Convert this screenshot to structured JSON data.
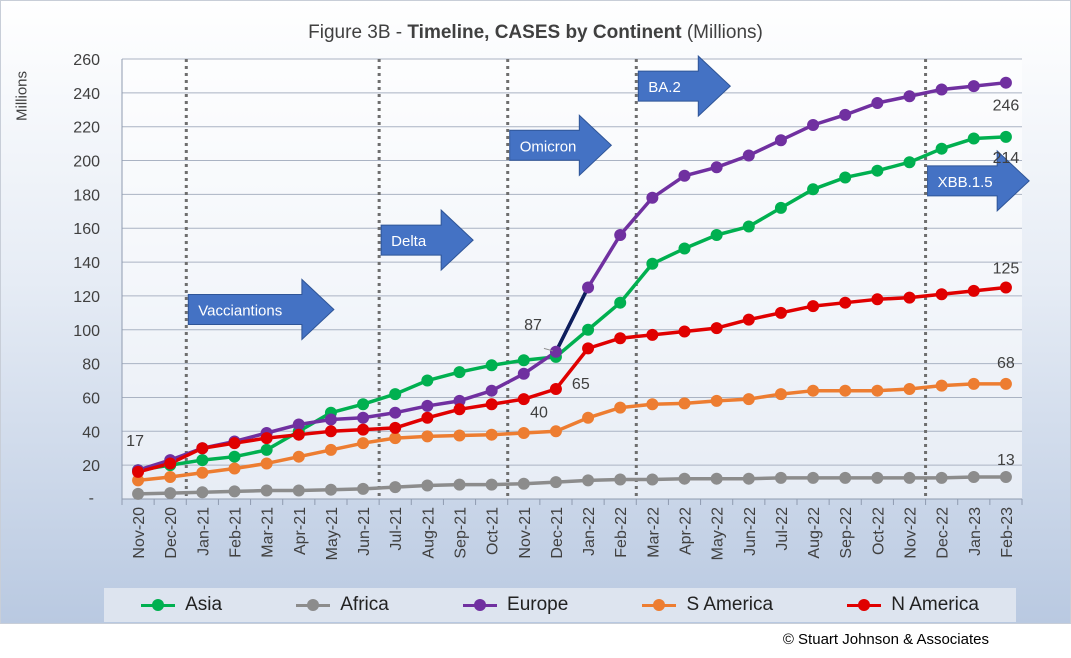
{
  "title_prefix": "Figure 3B - ",
  "title_bold": "Timeline, CASES by Continent",
  "title_suffix": " (Millions)",
  "copyright": "© Stuart Johnson & Associates",
  "chart_data": {
    "type": "line",
    "title": "Figure 3B - Timeline, CASES by Continent (Millions)",
    "ylabel": "Millions",
    "ylim": [
      0,
      260
    ],
    "yticks": [
      260,
      240,
      220,
      200,
      180,
      160,
      140,
      120,
      100,
      80,
      60,
      40,
      20
    ],
    "grid": true,
    "legend_position": "bottom",
    "categories": [
      "Nov-20",
      "Dec-20",
      "Jan-21",
      "Feb-21",
      "Mar-21",
      "Apr-21",
      "May-21",
      "Jun-21",
      "Jul-21",
      "Aug-21",
      "Sep-21",
      "Oct-21",
      "Nov-21",
      "Dec-21",
      "Jan-22",
      "Feb-22",
      "Mar-22",
      "Apr-22",
      "May-22",
      "Jun-22",
      "Jul-22",
      "Aug-22",
      "Sep-22",
      "Oct-22",
      "Nov-22",
      "Dec-22",
      "Jan-23",
      "Feb-23"
    ],
    "series": [
      {
        "name": "Asia",
        "color": "#00b050",
        "values": [
          17,
          20,
          23,
          25,
          29,
          40,
          51,
          56,
          62,
          70,
          75,
          79,
          82,
          84,
          100,
          116,
          139,
          148,
          156,
          161,
          172,
          183,
          190,
          194,
          199,
          207,
          213,
          214
        ]
      },
      {
        "name": "Africa",
        "color": "#8c8c8c",
        "values": [
          3,
          3.5,
          4,
          4.5,
          5,
          5,
          5.5,
          6,
          7,
          8,
          8.5,
          8.5,
          9,
          10,
          11,
          11.5,
          11.5,
          12,
          12,
          12,
          12.5,
          12.5,
          12.5,
          12.5,
          12.5,
          12.5,
          13,
          13
        ]
      },
      {
        "name": "Europe",
        "color": "#7030a0",
        "values": [
          17,
          23,
          30,
          34,
          39,
          44,
          47,
          48,
          51,
          55,
          58,
          64,
          74,
          87,
          125,
          156,
          178,
          191,
          196,
          203,
          212,
          221,
          227,
          234,
          238,
          242,
          244,
          246
        ]
      },
      {
        "name": "S America",
        "color": "#ed7d31",
        "values": [
          11,
          13,
          15.5,
          18,
          21,
          25,
          29,
          33,
          36,
          37,
          37.5,
          38,
          39,
          40,
          48,
          54,
          56,
          56.5,
          58,
          59,
          62,
          64,
          64,
          64,
          65,
          67,
          68,
          68
        ]
      },
      {
        "name": "N America",
        "color": "#e00000",
        "values": [
          16,
          21,
          30,
          33,
          36,
          38,
          40,
          41,
          42,
          48,
          53,
          56,
          59,
          65,
          89,
          95,
          97,
          99,
          101,
          106,
          110,
          114,
          116,
          118,
          119,
          121,
          123,
          125
        ]
      }
    ],
    "data_labels": [
      {
        "series": "Europe",
        "category": "Nov-20",
        "text": "17"
      },
      {
        "series": "Europe",
        "category": "Dec-21",
        "text": "87"
      },
      {
        "series": "N America",
        "category": "Dec-21",
        "text": "65"
      },
      {
        "series": "S America",
        "category": "Dec-21",
        "text": "40"
      },
      {
        "series": "Europe",
        "category": "Feb-23",
        "text": "246"
      },
      {
        "series": "Asia",
        "category": "Feb-23",
        "text": "214"
      },
      {
        "series": "N America",
        "category": "Feb-23",
        "text": "125"
      },
      {
        "series": "S America",
        "category": "Feb-23",
        "text": "68"
      },
      {
        "series": "Africa",
        "category": "Feb-23",
        "text": "13"
      }
    ],
    "annotations": [
      {
        "text": "Vacciantions",
        "category": "Jan-21",
        "y": 112
      },
      {
        "text": "Delta",
        "category": "Jul-21",
        "y": 153
      },
      {
        "text": "Omicron",
        "category": "Nov-21",
        "y": 209
      },
      {
        "text": "BA.2",
        "category": "Mar-22",
        "y": 244
      },
      {
        "text": "XBB.1.5",
        "category": "Dec-22",
        "y": 188
      }
    ],
    "highlight_segment": {
      "series": "Europe",
      "from": "Dec-21",
      "to": "Jan-22",
      "color": "#0d1f5c"
    }
  }
}
